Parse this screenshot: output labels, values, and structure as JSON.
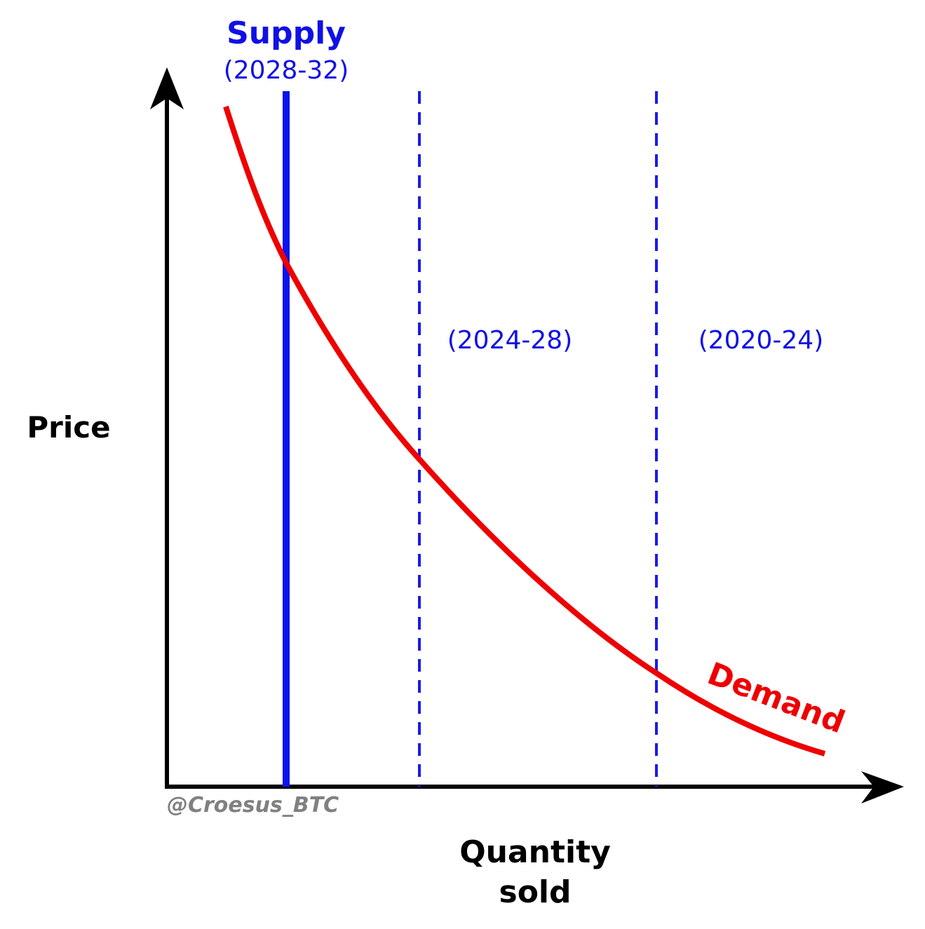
{
  "supply": {
    "label": "Supply",
    "periods": [
      "(2028-32)",
      "(2024-28)",
      "(2020-24)"
    ]
  },
  "demand": {
    "label": "Demand"
  },
  "axes": {
    "y_label": "Price",
    "x_label": [
      "Quantity",
      "sold"
    ]
  },
  "credit": "@Croesus_BTC"
}
